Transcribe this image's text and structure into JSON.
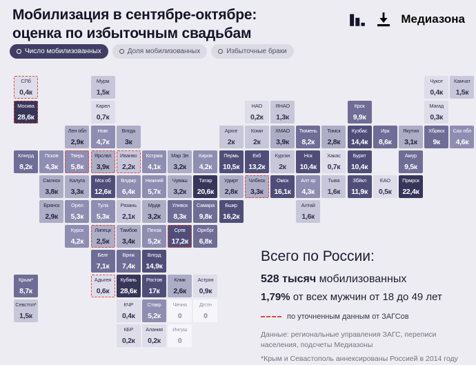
{
  "header": {
    "title_line1": "Мобилизация в сентябре-октябре:",
    "title_line2": "оценка по избыточным свадьбам",
    "brand": "Медиазона"
  },
  "tabs": [
    {
      "label": "Число мобилизованных",
      "active": true
    },
    {
      "label": "Доля мобилизованных",
      "active": false
    },
    {
      "label": "Избыточные браки",
      "active": false
    }
  ],
  "summary": {
    "heading": "Всего по России:",
    "total_bold": "528 тысяч",
    "total_rest": " мобилизованных",
    "pct_bold": "1,79%",
    "pct_rest": " от всех мужчин от 18 до 49 лет",
    "legend_refined": "по уточненным данным от ЗАГСов",
    "footnote_source": "Данные: региональные управления ЗАГС, переписи населения, подсчеты Медиазоны",
    "footnote_crimea": "*Крым и Севастополь аннексированы Россией в 2014 году"
  },
  "colors": {
    "background": "#edecf2",
    "accent_dashed": "#dd4a3a",
    "tab_active_bg": "#403e64",
    "tab_active_fg": "#ffffff",
    "tab_inactive_bg": "#dcdbe4",
    "tab_inactive_fg": "#4f4e66",
    "brand_fg": "#070707"
  },
  "chart_data": {
    "type": "heatmap",
    "subtype": "tile-cartogram-russia",
    "title": "Мобилизация в сентябре-октябре: оценка по избыточным свадьбам",
    "value_unit": "к = тысяч мобилизованных",
    "refined_note": "пунктирная рамка — по уточненным данным от ЗАГСов",
    "grid": {
      "cols": 18,
      "rows": 11
    },
    "level_colors": [
      {
        "bg": "#f6f5fa",
        "fg": "#8f8da1"
      },
      {
        "bg": "#dedde9",
        "fg": "#32314f"
      },
      {
        "bg": "#c8c7d9",
        "fg": "#32314f"
      },
      {
        "bg": "#aeadc6",
        "fg": "#26253f"
      },
      {
        "bg": "#8f8db1",
        "fg": "#ffffff"
      },
      {
        "bg": "#6f6d96",
        "fg": "#ffffff"
      },
      {
        "bg": "#504e79",
        "fg": "#ffffff"
      },
      {
        "bg": "#37355a",
        "fg": "#ffffff"
      }
    ],
    "regions": [
      {
        "label": "СПб",
        "value": "0,4к",
        "v": 0.4,
        "col": 0,
        "row": 0,
        "level": 1,
        "refined": true
      },
      {
        "label": "Мурм",
        "value": "1,5к",
        "v": 1.5,
        "col": 3,
        "row": 0,
        "level": 2
      },
      {
        "label": "Чукот",
        "value": "0,4к",
        "v": 0.4,
        "col": 16,
        "row": 0,
        "level": 1
      },
      {
        "label": "Камчат",
        "value": "1,5к",
        "v": 1.5,
        "col": 17,
        "row": 0,
        "level": 2
      },
      {
        "label": "Москва",
        "value": "28,6к",
        "v": 28.6,
        "col": 0,
        "row": 1,
        "level": 7,
        "refined": true
      },
      {
        "label": "Карел",
        "value": "0,7к",
        "v": 0.7,
        "col": 3,
        "row": 1,
        "level": 1
      },
      {
        "label": "НАО",
        "value": "0,2к",
        "v": 0.2,
        "col": 9,
        "row": 1,
        "level": 1
      },
      {
        "label": "ЯНАО",
        "value": "1,3к",
        "v": 1.3,
        "col": 10,
        "row": 1,
        "level": 2
      },
      {
        "label": "Крск",
        "value": "9,9к",
        "v": 9.9,
        "col": 13,
        "row": 1,
        "level": 5
      },
      {
        "label": "Магад",
        "value": "0,3к",
        "v": 0.3,
        "col": 16,
        "row": 1,
        "level": 1
      },
      {
        "label": "Лен обл",
        "value": "2,9к",
        "v": 2.9,
        "col": 2,
        "row": 2,
        "level": 3
      },
      {
        "label": "Новг",
        "value": "4,7к",
        "v": 4.7,
        "col": 3,
        "row": 2,
        "level": 4
      },
      {
        "label": "Влгда",
        "value": "3к",
        "v": 3,
        "col": 4,
        "row": 2,
        "level": 3
      },
      {
        "label": "Архнг",
        "value": "2к",
        "v": 2,
        "col": 8,
        "row": 2,
        "level": 2
      },
      {
        "label": "Коми",
        "value": "2к",
        "v": 2,
        "col": 9,
        "row": 2,
        "level": 2
      },
      {
        "label": "ХМАО",
        "value": "3,9к",
        "v": 3.9,
        "col": 10,
        "row": 2,
        "level": 3
      },
      {
        "label": "Тюмень",
        "value": "8,2к",
        "v": 8.2,
        "col": 11,
        "row": 2,
        "level": 5
      },
      {
        "label": "Томск",
        "value": "2,8к",
        "v": 2.8,
        "col": 12,
        "row": 2,
        "level": 3
      },
      {
        "label": "Кузбас",
        "value": "14,4к",
        "v": 14.4,
        "col": 13,
        "row": 2,
        "level": 6
      },
      {
        "label": "Ирк",
        "value": "8,6к",
        "v": 8.6,
        "col": 14,
        "row": 2,
        "level": 5
      },
      {
        "label": "Якутия",
        "value": "3,1к",
        "v": 3.1,
        "col": 15,
        "row": 2,
        "level": 3
      },
      {
        "label": "Хбрвск",
        "value": "9к",
        "v": 9,
        "col": 16,
        "row": 2,
        "level": 5
      },
      {
        "label": "Сах обл",
        "value": "4,6к",
        "v": 4.6,
        "col": 17,
        "row": 2,
        "level": 4
      },
      {
        "label": "Клнгрд",
        "value": "8,2к",
        "v": 8.2,
        "col": 0,
        "row": 3,
        "level": 5
      },
      {
        "label": "Псков",
        "value": "4,3к",
        "v": 4.3,
        "col": 1,
        "row": 3,
        "level": 4
      },
      {
        "label": "Тверь",
        "value": "5,8к",
        "v": 5.8,
        "col": 2,
        "row": 3,
        "level": 4,
        "refined": true
      },
      {
        "label": "Ярслвл",
        "value": "3,9к",
        "v": 3.9,
        "col": 3,
        "row": 3,
        "level": 3,
        "refined": true
      },
      {
        "label": "Иванво",
        "value": "2,2к",
        "v": 2.2,
        "col": 4,
        "row": 3,
        "level": 2,
        "refined": true
      },
      {
        "label": "Кстрма",
        "value": "4,1к",
        "v": 4.1,
        "col": 5,
        "row": 3,
        "level": 4
      },
      {
        "label": "Мар Эл",
        "value": "3,2к",
        "v": 3.2,
        "col": 6,
        "row": 3,
        "level": 3
      },
      {
        "label": "Киров",
        "value": "4,2к",
        "v": 4.2,
        "col": 7,
        "row": 3,
        "level": 4
      },
      {
        "label": "Пермь",
        "value": "10,5к",
        "v": 10.5,
        "col": 8,
        "row": 3,
        "level": 6
      },
      {
        "label": "Екб",
        "value": "13,2к",
        "v": 13.2,
        "col": 9,
        "row": 3,
        "level": 6
      },
      {
        "label": "Курган",
        "value": "2к",
        "v": 2,
        "col": 10,
        "row": 3,
        "level": 2
      },
      {
        "label": "Нск",
        "value": "10,4к",
        "v": 10.4,
        "col": 11,
        "row": 3,
        "level": 6
      },
      {
        "label": "Хакас",
        "value": "0,7к",
        "v": 0.7,
        "col": 12,
        "row": 3,
        "level": 1
      },
      {
        "label": "Бурят",
        "value": "10,4к",
        "v": 10.4,
        "col": 13,
        "row": 3,
        "level": 6
      },
      {
        "label": "Амур",
        "value": "9,5к",
        "v": 9.5,
        "col": 15,
        "row": 3,
        "level": 5
      },
      {
        "label": "Смлнск",
        "value": "3,8к",
        "v": 3.8,
        "col": 1,
        "row": 4,
        "level": 3
      },
      {
        "label": "Калуга",
        "value": "3,3к",
        "v": 3.3,
        "col": 2,
        "row": 4,
        "level": 3
      },
      {
        "label": "Мск об",
        "value": "12,6к",
        "v": 12.6,
        "col": 3,
        "row": 4,
        "level": 6
      },
      {
        "label": "Влдмр",
        "value": "6,4к",
        "v": 6.4,
        "col": 4,
        "row": 4,
        "level": 4
      },
      {
        "label": "Нижний",
        "value": "5,7к",
        "v": 5.7,
        "col": 5,
        "row": 4,
        "level": 4
      },
      {
        "label": "Чуваш",
        "value": "3,2к",
        "v": 3.2,
        "col": 6,
        "row": 4,
        "level": 3
      },
      {
        "label": "Татар",
        "value": "20,6к",
        "v": 20.6,
        "col": 7,
        "row": 4,
        "level": 7
      },
      {
        "label": "Удмрт",
        "value": "2,8к",
        "v": 2.8,
        "col": 8,
        "row": 4,
        "level": 3
      },
      {
        "label": "Члбнск",
        "value": "3,3к",
        "v": 3.3,
        "col": 9,
        "row": 4,
        "level": 3,
        "refined": true
      },
      {
        "label": "Омск",
        "value": "16,1к",
        "v": 16.1,
        "col": 10,
        "row": 4,
        "level": 6
      },
      {
        "label": "Алт кр",
        "value": "4,3к",
        "v": 4.3,
        "col": 11,
        "row": 4,
        "level": 4
      },
      {
        "label": "Тыва",
        "value": "1,6к",
        "v": 1.6,
        "col": 12,
        "row": 4,
        "level": 2
      },
      {
        "label": "Збйкл",
        "value": "11,9к",
        "v": 11.9,
        "col": 13,
        "row": 4,
        "level": 6
      },
      {
        "label": "ЕАО",
        "value": "0,5к",
        "v": 0.5,
        "col": 14,
        "row": 4,
        "level": 1
      },
      {
        "label": "Прмрск",
        "value": "22,4к",
        "v": 22.4,
        "col": 15,
        "row": 4,
        "level": 7
      },
      {
        "label": "Брянск",
        "value": "2,9к",
        "v": 2.9,
        "col": 1,
        "row": 5,
        "level": 3
      },
      {
        "label": "Орел",
        "value": "5,3к",
        "v": 5.3,
        "col": 2,
        "row": 5,
        "level": 4
      },
      {
        "label": "Тула",
        "value": "5,3к",
        "v": 5.3,
        "col": 3,
        "row": 5,
        "level": 4
      },
      {
        "label": "Рязань",
        "value": "2,1к",
        "v": 2.1,
        "col": 4,
        "row": 5,
        "level": 2
      },
      {
        "label": "Мрдв",
        "value": "3,2к",
        "v": 3.2,
        "col": 5,
        "row": 5,
        "level": 3
      },
      {
        "label": "Улнвск",
        "value": "8,3к",
        "v": 8.3,
        "col": 6,
        "row": 5,
        "level": 5
      },
      {
        "label": "Самара",
        "value": "9,8к",
        "v": 9.8,
        "col": 7,
        "row": 5,
        "level": 5
      },
      {
        "label": "Бшкр",
        "value": "16,2к",
        "v": 16.2,
        "col": 8,
        "row": 5,
        "level": 6
      },
      {
        "label": "Алтай",
        "value": "1,6к",
        "v": 1.6,
        "col": 11,
        "row": 5,
        "level": 2
      },
      {
        "label": "Курск",
        "value": "4,2к",
        "v": 4.2,
        "col": 2,
        "row": 6,
        "level": 4
      },
      {
        "label": "Липецк",
        "value": "2,5к",
        "v": 2.5,
        "col": 3,
        "row": 6,
        "level": 3,
        "refined": true
      },
      {
        "label": "Тамбов",
        "value": "3,4к",
        "v": 3.4,
        "col": 4,
        "row": 6,
        "level": 3
      },
      {
        "label": "Пенза",
        "value": "5,2к",
        "v": 5.2,
        "col": 5,
        "row": 6,
        "level": 4
      },
      {
        "label": "Сртв",
        "value": "17,2к",
        "v": 17.2,
        "col": 6,
        "row": 6,
        "level": 6,
        "refined": true
      },
      {
        "label": "Орнбрг",
        "value": "6,8к",
        "v": 6.8,
        "col": 7,
        "row": 6,
        "level": 5
      },
      {
        "label": "Белг",
        "value": "7,1к",
        "v": 7.1,
        "col": 3,
        "row": 7,
        "level": 5
      },
      {
        "label": "Врнж",
        "value": "7,4к",
        "v": 7.4,
        "col": 4,
        "row": 7,
        "level": 5
      },
      {
        "label": "Влгрд",
        "value": "14,9к",
        "v": 14.9,
        "col": 5,
        "row": 7,
        "level": 6
      },
      {
        "label": "Крым*",
        "value": "8,7к",
        "v": 8.7,
        "col": 0,
        "row": 8,
        "level": 5
      },
      {
        "label": "Адыгея",
        "value": "0,6к",
        "v": 0.6,
        "col": 3,
        "row": 8,
        "level": 1,
        "refined": true
      },
      {
        "label": "Кубань",
        "value": "28,6к",
        "v": 28.6,
        "col": 4,
        "row": 8,
        "level": 7
      },
      {
        "label": "Ростов",
        "value": "17к",
        "v": 17,
        "col": 5,
        "row": 8,
        "level": 6
      },
      {
        "label": "Клмк",
        "value": "2,6к",
        "v": 2.6,
        "col": 6,
        "row": 8,
        "level": 3
      },
      {
        "label": "Астрхн",
        "value": "0,9к",
        "v": 0.9,
        "col": 7,
        "row": 8,
        "level": 1
      },
      {
        "label": "Севстпл*",
        "value": "1,5к",
        "v": 1.5,
        "col": 0,
        "row": 9,
        "level": 2
      },
      {
        "label": "КЧР",
        "value": "0,4к",
        "v": 0.4,
        "col": 4,
        "row": 9,
        "level": 1
      },
      {
        "label": "Ставр",
        "value": "5,2к",
        "v": 5.2,
        "col": 5,
        "row": 9,
        "level": 4
      },
      {
        "label": "Чечня",
        "value": "0",
        "v": 0,
        "col": 6,
        "row": 9,
        "level": 0
      },
      {
        "label": "Дгстн",
        "value": "0",
        "v": 0,
        "col": 7,
        "row": 9,
        "level": 0
      },
      {
        "label": "КБР",
        "value": "0,2к",
        "v": 0.2,
        "col": 4,
        "row": 10,
        "level": 1
      },
      {
        "label": "Алания",
        "value": "0,2к",
        "v": 0.2,
        "col": 5,
        "row": 10,
        "level": 1
      },
      {
        "label": "Ингуш",
        "value": "0",
        "v": 0,
        "col": 6,
        "row": 10,
        "level": 0
      }
    ]
  }
}
